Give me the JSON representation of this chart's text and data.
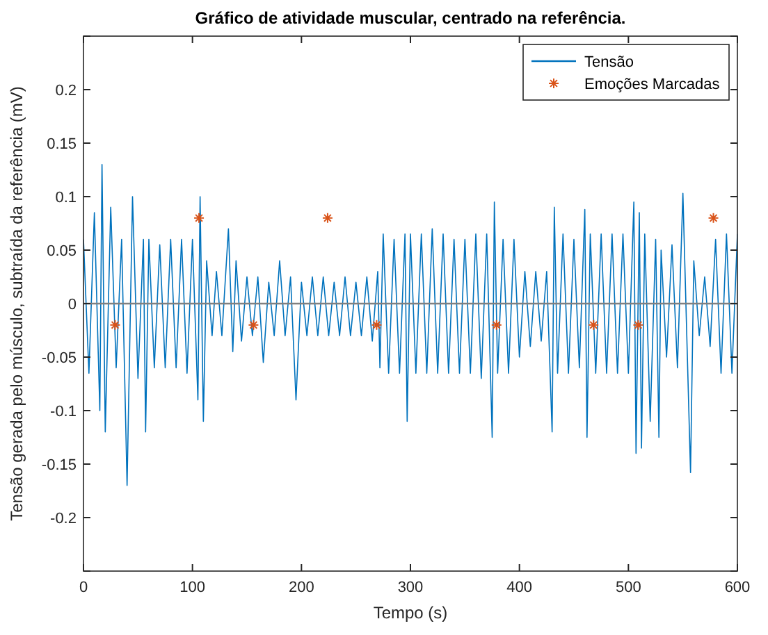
{
  "chart_data": {
    "type": "line",
    "title": "Gráfico de atividade muscular, centrado na referência.",
    "xlabel": "Tempo (s)",
    "ylabel": "Tensão gerada pelo músculo, subtraída da referência (mV)",
    "xlim": [
      0,
      600
    ],
    "xticks": [
      0,
      100,
      200,
      300,
      400,
      500,
      600
    ],
    "ylim": [
      -0.25,
      0.25
    ],
    "yticks": [
      {
        "value": -0.25,
        "label": null
      },
      -0.2,
      -0.15,
      -0.1,
      -0.05,
      0,
      0.05,
      0.1,
      0.15,
      0.2,
      {
        "value": 0.25,
        "label": null
      }
    ],
    "grid": false,
    "legend": "top right",
    "ref_lines": [
      {
        "axis": "y",
        "value": 0,
        "color": "#808080"
      }
    ],
    "series": [
      {
        "name": "Tensão",
        "color": "#0072bd",
        "marker": "none",
        "x": [
          0,
          5,
          10,
          15,
          17,
          20,
          25,
          30,
          35,
          40,
          45,
          50,
          55,
          57,
          60,
          65,
          70,
          75,
          80,
          85,
          90,
          95,
          100,
          105,
          107,
          110,
          113,
          118,
          122,
          127,
          133,
          137,
          140,
          145,
          150,
          155,
          160,
          165,
          170,
          175,
          180,
          185,
          190,
          195,
          200,
          205,
          210,
          215,
          220,
          225,
          230,
          235,
          240,
          245,
          250,
          255,
          260,
          265,
          270,
          272,
          275,
          280,
          285,
          290,
          295,
          297,
          300,
          305,
          310,
          315,
          320,
          325,
          330,
          335,
          340,
          345,
          350,
          355,
          360,
          365,
          370,
          375,
          377,
          380,
          385,
          390,
          395,
          400,
          405,
          410,
          415,
          420,
          425,
          430,
          432,
          435,
          440,
          445,
          450,
          455,
          460,
          462,
          465,
          470,
          475,
          480,
          485,
          490,
          495,
          500,
          505,
          507,
          510,
          512,
          515,
          520,
          525,
          528,
          530,
          535,
          540,
          545,
          550,
          557,
          560,
          565,
          570,
          575,
          580,
          585,
          590,
          595,
          600
        ],
        "values": [
          0.06,
          -0.065,
          0.085,
          -0.1,
          0.13,
          -0.12,
          0.09,
          -0.06,
          0.06,
          -0.17,
          0.1,
          -0.07,
          0.06,
          -0.12,
          0.06,
          -0.06,
          0.055,
          -0.06,
          0.06,
          -0.06,
          0.06,
          -0.065,
          0.06,
          -0.09,
          0.1,
          -0.11,
          0.04,
          -0.03,
          0.03,
          -0.03,
          0.07,
          -0.045,
          0.04,
          -0.035,
          0.025,
          -0.03,
          0.025,
          -0.055,
          0.02,
          -0.03,
          0.04,
          -0.03,
          0.025,
          -0.09,
          0.02,
          -0.03,
          0.025,
          -0.03,
          0.025,
          -0.03,
          0.02,
          -0.03,
          0.025,
          -0.03,
          0.02,
          -0.03,
          0.025,
          -0.035,
          0.03,
          -0.06,
          0.065,
          -0.065,
          0.06,
          -0.065,
          0.065,
          -0.11,
          0.065,
          -0.065,
          0.065,
          -0.065,
          0.07,
          -0.065,
          0.065,
          -0.065,
          0.06,
          -0.065,
          0.06,
          -0.065,
          0.065,
          -0.07,
          0.065,
          -0.125,
          0.095,
          -0.065,
          0.06,
          -0.065,
          0.06,
          -0.05,
          0.03,
          -0.04,
          0.03,
          -0.035,
          0.03,
          -0.12,
          0.09,
          -0.065,
          0.065,
          -0.065,
          0.06,
          -0.06,
          0.088,
          -0.125,
          0.065,
          -0.065,
          0.065,
          -0.065,
          0.065,
          -0.065,
          0.065,
          -0.065,
          0.095,
          -0.14,
          0.085,
          -0.135,
          0.065,
          -0.11,
          0.06,
          -0.125,
          0.05,
          -0.05,
          0.055,
          -0.06,
          0.103,
          -0.158,
          0.04,
          -0.03,
          0.025,
          -0.04,
          0.06,
          -0.065,
          0.065,
          -0.065,
          0.065
        ]
      },
      {
        "name": "Emoções Marcadas",
        "type": "scatter",
        "color": "#d95319",
        "marker": "cross",
        "x": [
          29,
          106,
          156,
          224,
          269,
          379,
          468,
          509,
          578
        ],
        "values": [
          -0.02,
          0.08,
          -0.02,
          0.08,
          -0.02,
          -0.02,
          -0.02,
          -0.02,
          0.08
        ]
      }
    ]
  }
}
